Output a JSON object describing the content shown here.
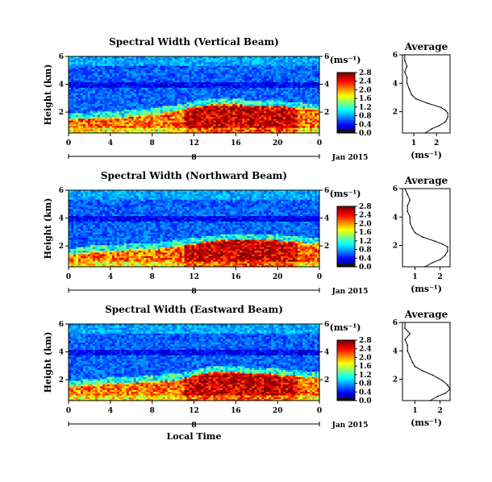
{
  "chart_data": [
    {
      "type": "heatmap",
      "title": "Spectral Width (Vertical Beam)",
      "ylabel": "Height (km)",
      "yticks": [
        "2",
        "4",
        "6"
      ],
      "ylim": [
        0.5,
        6
      ],
      "xticks": [
        "0",
        "4",
        "8",
        "12",
        "16",
        "20",
        "0"
      ],
      "xlim": [
        0,
        24
      ],
      "date_marker": "8",
      "date_label": "Jan 2015",
      "colorbar": {
        "unit": "(ms⁻¹)",
        "ticks": [
          "0.0",
          "0.4",
          "0.8",
          "1.2",
          "1.6",
          "2.0",
          "2.4",
          "2.8"
        ]
      },
      "boundary_layer_top_km": [
        1.5,
        1.6,
        1.6,
        1.7,
        1.7,
        1.7,
        1.8,
        1.8,
        1.9,
        2.0,
        2.1,
        2.2,
        2.4,
        2.5,
        2.6,
        2.6,
        2.6,
        2.5,
        2.5,
        2.5,
        2.4,
        2.4,
        2.3,
        2.3,
        2.2
      ],
      "average_profile": {
        "title": "Average",
        "xlabel": "(ms⁻¹)",
        "xticks": [
          "1",
          "2"
        ],
        "xlim": [
          0.5,
          2.6
        ],
        "yticks": [
          "2",
          "4",
          "6"
        ],
        "ylim": [
          0.5,
          6
        ],
        "height_km": [
          0.5,
          0.8,
          1.0,
          1.3,
          1.6,
          1.9,
          2.1,
          2.3,
          2.6,
          2.9,
          3.2,
          3.6,
          4.0,
          4.4,
          4.8,
          5.2,
          5.6,
          6.0
        ],
        "width": [
          1.5,
          1.8,
          2.1,
          2.4,
          2.5,
          2.5,
          2.4,
          2.2,
          1.6,
          1.1,
          0.9,
          0.8,
          0.7,
          0.7,
          0.6,
          0.7,
          0.6,
          0.6
        ]
      }
    },
    {
      "type": "heatmap",
      "title": "Spectral Width (Northward Beam)",
      "ylabel": "Height (km)",
      "yticks": [
        "2",
        "4",
        "6"
      ],
      "ylim": [
        0.5,
        6
      ],
      "xticks": [
        "0",
        "4",
        "8",
        "12",
        "16",
        "20",
        "0"
      ],
      "xlim": [
        0,
        24
      ],
      "date_marker": "8",
      "date_label": "Jan 2015",
      "colorbar": {
        "unit": "(ms⁻¹)",
        "ticks": [
          "0.0",
          "0.4",
          "0.8",
          "1.2",
          "1.6",
          "2.0",
          "2.4",
          "2.8"
        ]
      },
      "boundary_layer_top_km": [
        1.4,
        1.5,
        1.6,
        1.7,
        1.7,
        1.7,
        1.8,
        1.8,
        1.8,
        1.9,
        2.0,
        2.1,
        2.2,
        2.3,
        2.4,
        2.4,
        2.5,
        2.5,
        2.5,
        2.4,
        2.4,
        2.3,
        2.3,
        2.2,
        2.2
      ],
      "average_profile": {
        "title": "Average",
        "xlabel": "(ms⁻¹)",
        "xticks": [
          "1",
          "2"
        ],
        "xlim": [
          0.5,
          2.4
        ],
        "yticks": [
          "2",
          "4",
          "6"
        ],
        "ylim": [
          0.5,
          6
        ],
        "height_km": [
          0.5,
          0.8,
          1.0,
          1.3,
          1.6,
          1.9,
          2.1,
          2.3,
          2.6,
          2.9,
          3.2,
          3.6,
          4.0,
          4.4,
          4.8,
          5.2,
          5.6,
          6.0
        ],
        "width": [
          1.4,
          1.7,
          2.0,
          2.2,
          2.3,
          2.3,
          2.1,
          1.8,
          1.3,
          1.0,
          0.9,
          0.8,
          0.8,
          0.7,
          0.7,
          0.8,
          0.7,
          0.6
        ]
      }
    },
    {
      "type": "heatmap",
      "title": "Spectral Width (Eastward Beam)",
      "ylabel": "Height (km)",
      "yticks": [
        "2",
        "4",
        "6"
      ],
      "ylim": [
        0.5,
        6
      ],
      "xticks": [
        "0",
        "4",
        "8",
        "12",
        "16",
        "20",
        "0"
      ],
      "xlim": [
        0,
        24
      ],
      "date_marker": "8",
      "date_label": "Jan 2015",
      "xlabel": "Local Time",
      "colorbar": {
        "unit": "(ms⁻¹)",
        "ticks": [
          "0.0",
          "0.4",
          "0.8",
          "1.2",
          "1.6",
          "2.0",
          "2.4",
          "2.8"
        ]
      },
      "boundary_layer_top_km": [
        1.5,
        1.6,
        1.7,
        1.7,
        1.8,
        1.8,
        1.8,
        1.9,
        1.9,
        2.0,
        2.0,
        2.1,
        2.3,
        2.5,
        2.6,
        2.6,
        2.6,
        2.5,
        2.5,
        2.4,
        2.4,
        2.3,
        2.3,
        2.2,
        2.2
      ],
      "average_profile": {
        "title": "Average",
        "xlabel": "(ms⁻¹)",
        "xticks": [
          "1",
          "2"
        ],
        "xlim": [
          0.5,
          2.4
        ],
        "yticks": [
          "2",
          "4",
          "6"
        ],
        "ylim": [
          0.5,
          6
        ],
        "height_km": [
          0.5,
          0.8,
          1.0,
          1.3,
          1.6,
          1.9,
          2.1,
          2.3,
          2.6,
          2.9,
          3.2,
          3.6,
          4.0,
          4.4,
          4.8,
          5.2,
          5.6,
          6.0
        ],
        "width": [
          1.6,
          1.9,
          2.2,
          2.4,
          2.3,
          2.1,
          1.9,
          1.7,
          1.3,
          1.0,
          0.9,
          0.8,
          0.7,
          0.7,
          0.6,
          0.8,
          0.6,
          0.6
        ]
      }
    }
  ]
}
